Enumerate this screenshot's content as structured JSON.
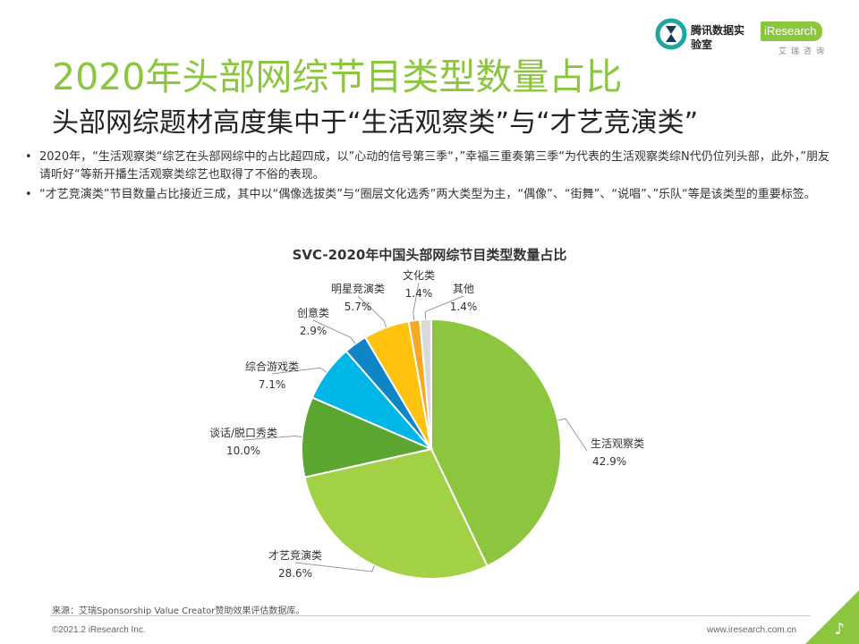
{
  "header": {
    "title": "2020年头部网综节目类型数量占比",
    "subtitle": "头部网综题材高度集中于“生活观察类”与“才艺竞演类”",
    "logo_tencent": "腾讯数据实验室",
    "logo_iresearch": "iResearch",
    "logo_iresearch_cn": "艾瑞咨询"
  },
  "bullets": [
    {
      "marker": "•",
      "text": "2020年，“生活观察类“综艺在头部网综中的占比超四成，以”心动的信号第三季“，”幸福三重奏第三季“为代表的生活观察类综N代仍位列头部，此外，”朋友请听好“等新开播生活观察类综艺也取得了不俗的表现。"
    },
    {
      "marker": "•",
      "text": "“才艺竞演类”节目数量占比接近三成，其中以“偶像选拔类”与“圈层文化选秀”两大类型为主，“偶像”、“街舞”、“说唱”、”乐队“等是该类型的重要标签。"
    }
  ],
  "chart_data": {
    "type": "pie",
    "title": "SVC-2020年中国头部网综节目类型数量占比",
    "unit": "%",
    "start_angle_deg": 0,
    "direction": "clockwise",
    "slices": [
      {
        "label": "生活观察类",
        "value": 42.9,
        "value_label": "42.9%",
        "color": "#8cc63e"
      },
      {
        "label": "才艺竞演类",
        "value": 28.6,
        "value_label": "28.6%",
        "color": "#a3d146"
      },
      {
        "label": "谈话/脱口秀类",
        "value": 10.0,
        "value_label": "10.0%",
        "color": "#5aa630"
      },
      {
        "label": "综合游戏类",
        "value": 7.1,
        "value_label": "7.1%",
        "color": "#00b6e7"
      },
      {
        "label": "创意类",
        "value": 2.9,
        "value_label": "2.9%",
        "color": "#0e86c6"
      },
      {
        "label": "明星竞演类",
        "value": 5.7,
        "value_label": "5.7%",
        "color": "#ffc20e"
      },
      {
        "label": "文化类",
        "value": 1.4,
        "value_label": "1.4%",
        "color": "#f7a823"
      },
      {
        "label": "其他",
        "value": 1.4,
        "value_label": "1.4%",
        "color": "#d9d9d9"
      }
    ]
  },
  "footer": {
    "source": "来源：艾瑞Sponsorship Value Creator赞助效果评估数据库。",
    "copyright": "©2021.2 iResearch Inc.",
    "website": "www.iresearch.com.cn"
  },
  "colors": {
    "brand_green": "#8cc63e",
    "corner_green": "#8cc63e"
  }
}
